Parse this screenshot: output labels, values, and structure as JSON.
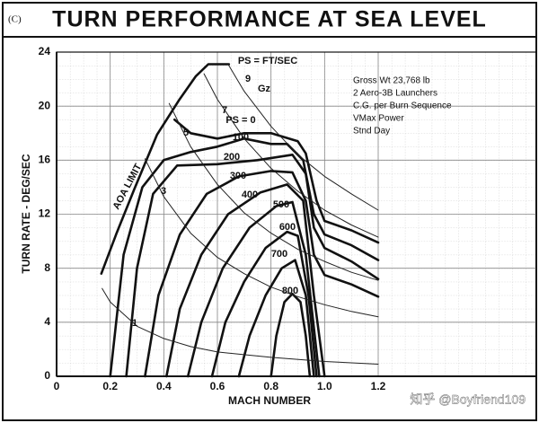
{
  "chart_data": {
    "type": "line",
    "title": "TURN PERFORMANCE AT SEA LEVEL",
    "panel_label": "(C)",
    "x_label": "MACH NUMBER",
    "y_label": "TURN RATE - DEG/SEC",
    "xlim": [
      0,
      1.79
    ],
    "ylim": [
      0,
      24
    ],
    "xticks": [
      0,
      0.2,
      0.4,
      0.6,
      0.8,
      {
        "value": 1.0,
        "label": "1.0"
      },
      1.2
    ],
    "yticks": [
      0,
      4,
      8,
      12,
      16,
      20,
      24
    ],
    "grid": true,
    "annotations": [
      "PS = FT/SEC",
      "Gz",
      "Gross Wt 23,768 lb",
      "2 Aero-3B Launchers",
      "C.G. per Burn Sequence",
      "VMax Power",
      "Stnd Day"
    ],
    "watermark": "知乎 @Boyfriend109",
    "series": [
      {
        "name": "AOA LIMIT",
        "color": "#111",
        "style": "heavy",
        "x": [
          0.167,
          0.224,
          0.291,
          0.375,
          0.459,
          0.519,
          0.566,
          0.643
        ],
        "values": [
          7.6,
          10.6,
          13.9,
          17.9,
          20.5,
          22.2,
          23.1,
          23.1
        ]
      },
      {
        "name": "PS = 0",
        "color": "#111",
        "style": "heavy",
        "x": [
          0.44,
          0.5,
          0.6,
          0.7,
          0.8,
          0.9,
          0.93,
          0.97,
          1.0,
          1.1,
          1.2
        ],
        "values": [
          19,
          18,
          17.6,
          18,
          18,
          17.4,
          16.5,
          13,
          11.5,
          10.8,
          9.9
        ]
      },
      {
        "name": "100",
        "color": "#111",
        "style": "heavy",
        "x": [
          0.2,
          0.25,
          0.32,
          0.4,
          0.5,
          0.6,
          0.7,
          0.8,
          0.86,
          0.92,
          0.96,
          1.0,
          1.1,
          1.2
        ],
        "values": [
          0,
          9,
          14,
          16,
          16.6,
          17,
          17.6,
          17.2,
          17.2,
          16,
          12,
          10.5,
          9.7,
          8.6
        ]
      },
      {
        "name": "200",
        "color": "#111",
        "style": "heavy",
        "x": [
          0.26,
          0.3,
          0.36,
          0.45,
          0.6,
          0.75,
          0.88,
          0.93,
          0.96,
          1.0,
          1.1,
          1.2
        ],
        "values": [
          0,
          8,
          13.5,
          15.6,
          15.7,
          16,
          16.4,
          15,
          11,
          9.5,
          8.5,
          7.2
        ]
      },
      {
        "name": "300",
        "color": "#111",
        "style": "heavy",
        "x": [
          0.33,
          0.38,
          0.46,
          0.56,
          0.68,
          0.8,
          0.88,
          0.93,
          0.96,
          1.0,
          1.1,
          1.2
        ],
        "values": [
          0,
          6,
          10.5,
          13.5,
          14.8,
          15.2,
          15.1,
          13,
          9,
          7.5,
          6.8,
          5.9
        ]
      },
      {
        "name": "400",
        "color": "#111",
        "style": "heavy",
        "x": [
          0.41,
          0.46,
          0.54,
          0.64,
          0.76,
          0.86,
          0.92,
          0.96,
          1.0
        ],
        "values": [
          0,
          5,
          9,
          12,
          13.6,
          14.2,
          13,
          6,
          0
        ]
      },
      {
        "name": "500",
        "color": "#111",
        "style": "heavy",
        "x": [
          0.49,
          0.54,
          0.62,
          0.72,
          0.82,
          0.88,
          0.93,
          0.98
        ],
        "values": [
          0,
          4,
          8,
          11,
          12.6,
          12.9,
          9,
          0
        ]
      },
      {
        "name": "600",
        "color": "#111",
        "style": "heavy",
        "x": [
          0.58,
          0.63,
          0.7,
          0.78,
          0.86,
          0.9,
          0.94,
          0.97
        ],
        "values": [
          0,
          4,
          7,
          9.5,
          10.7,
          10.4,
          6,
          0
        ]
      },
      {
        "name": "700",
        "color": "#111",
        "style": "heavy",
        "x": [
          0.68,
          0.72,
          0.78,
          0.84,
          0.89,
          0.93,
          0.96
        ],
        "values": [
          0,
          3,
          6,
          8,
          8.6,
          6,
          0
        ]
      },
      {
        "name": "800",
        "color": "#111",
        "style": "heavy",
        "x": [
          0.8,
          0.82,
          0.85,
          0.88,
          0.91,
          0.93,
          0.945
        ],
        "values": [
          0,
          3,
          5.5,
          6.1,
          5.5,
          3,
          0
        ]
      },
      {
        "name": "1",
        "color": "#222",
        "style": "light",
        "x": [
          0.17,
          0.2,
          0.3,
          0.4,
          0.5,
          0.6,
          0.8,
          1.0,
          1.2
        ],
        "values": [
          6.5,
          5.5,
          3.7,
          2.8,
          2.2,
          1.8,
          1.4,
          1.1,
          0.9
        ]
      },
      {
        "name": "3",
        "color": "#222",
        "style": "light",
        "x": [
          0.33,
          0.4,
          0.5,
          0.6,
          0.7,
          0.8,
          0.9,
          1.0,
          1.1,
          1.2
        ],
        "values": [
          16.1,
          13.3,
          10.6,
          8.8,
          7.6,
          6.6,
          5.9,
          5.3,
          4.8,
          4.4
        ]
      },
      {
        "name": "5",
        "color": "#222",
        "style": "light",
        "x": [
          0.42,
          0.5,
          0.6,
          0.7,
          0.8,
          0.9,
          1.0,
          1.1,
          1.2
        ],
        "values": [
          20.2,
          17,
          14.2,
          12.1,
          10.6,
          9.4,
          8.5,
          7.7,
          7.1
        ]
      },
      {
        "name": "7",
        "color": "#222",
        "style": "light",
        "x": [
          0.55,
          0.6,
          0.7,
          0.8,
          0.9,
          1.0,
          1.1,
          1.2
        ],
        "values": [
          22.4,
          20.5,
          17.6,
          15.4,
          13.7,
          12.3,
          11.2,
          10.3
        ]
      },
      {
        "name": "9",
        "color": "#222",
        "style": "light",
        "x": [
          0.64,
          0.7,
          0.8,
          0.9,
          1.0,
          1.1,
          1.2
        ],
        "values": [
          23.1,
          21.1,
          18.5,
          16.4,
          14.8,
          13.5,
          12.3
        ]
      }
    ]
  }
}
